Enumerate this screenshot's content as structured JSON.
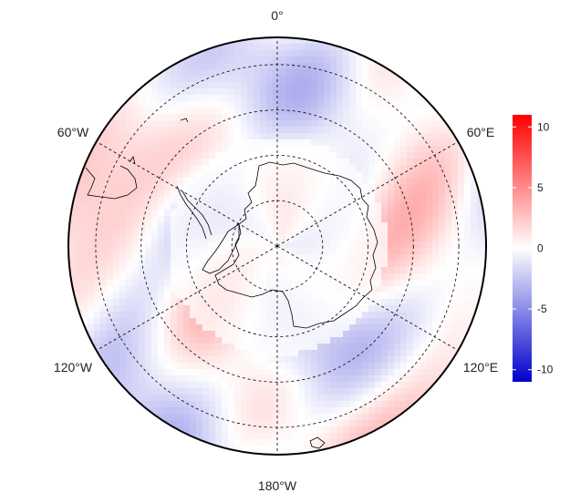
{
  "map": {
    "projection": "south-polar-stereographic",
    "longitude_labels": [
      {
        "id": "0",
        "text": "0°",
        "lon": 0
      },
      {
        "id": "60e",
        "text": "60°E",
        "lon": 60
      },
      {
        "id": "120e",
        "text": "120°E",
        "lon": 120
      },
      {
        "id": "180w",
        "text": "180°W",
        "lon": 180
      },
      {
        "id": "120w",
        "text": "120°W",
        "lon": -120
      },
      {
        "id": "60w",
        "text": "60°W",
        "lon": -60
      }
    ],
    "meridians_deg": [
      0,
      30,
      60,
      90,
      120,
      150,
      180,
      210,
      240,
      270,
      300,
      330
    ],
    "parallel_rings": 4,
    "colors": {
      "negative": "#0000cc",
      "zero": "#ffffff",
      "positive": "#ff0000",
      "land": "#ffffff",
      "coastline": "#000000"
    }
  },
  "colorbar": {
    "min": -11,
    "max": 11,
    "ticks": [
      {
        "value": 10,
        "label": "10"
      },
      {
        "value": 5,
        "label": "5"
      },
      {
        "value": 0,
        "label": "0"
      },
      {
        "value": -5,
        "label": "-5"
      },
      {
        "value": -10,
        "label": "-10"
      }
    ]
  }
}
